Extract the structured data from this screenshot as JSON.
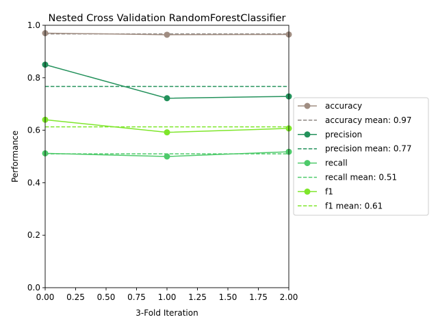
{
  "chart_data": {
    "type": "line",
    "title": "Nested Cross Validation RandomForestClassifier",
    "xlabel": "3-Fold Iteration",
    "ylabel": "Performance",
    "xlim": [
      0,
      2
    ],
    "ylim": [
      0,
      1
    ],
    "x": [
      0,
      1,
      2
    ],
    "xticks": [
      "0.00",
      "0.25",
      "0.50",
      "0.75",
      "1.00",
      "1.25",
      "1.50",
      "1.75",
      "2.00"
    ],
    "yticks": [
      "0.0",
      "0.2",
      "0.4",
      "0.6",
      "0.8",
      "1.0"
    ],
    "grid": false,
    "legend_position": "outside right",
    "series": [
      {
        "name": "accuracy",
        "values": [
          0.97,
          0.964,
          0.965
        ],
        "color": "#a08d82",
        "mean": 0.967,
        "mean_label": "accuracy mean: 0.97",
        "mean_color": "#8c8580"
      },
      {
        "name": "precision",
        "values": [
          0.85,
          0.722,
          0.729
        ],
        "color": "#23915b",
        "mean": 0.767,
        "mean_label": "precision mean: 0.77",
        "mean_color": "#23915b"
      },
      {
        "name": "recall",
        "values": [
          0.512,
          0.5,
          0.518
        ],
        "color": "#4dca6a",
        "mean": 0.51,
        "mean_label": "recall mean: 0.51",
        "mean_color": "#4dca6a"
      },
      {
        "name": "f1",
        "values": [
          0.64,
          0.592,
          0.607
        ],
        "color": "#7ee62a",
        "mean": 0.613,
        "mean_label": "f1 mean: 0.61",
        "mean_color": "#7ee62a"
      }
    ]
  }
}
